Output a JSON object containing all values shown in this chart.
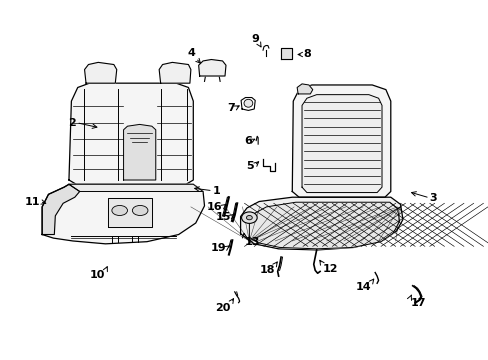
{
  "background_color": "#ffffff",
  "line_color": "#000000",
  "figure_width": 4.89,
  "figure_height": 3.6,
  "dpi": 100,
  "label_positions": {
    "1": [
      0.435,
      0.47,
      "left",
      "center",
      0.39,
      0.478
    ],
    "2": [
      0.155,
      0.66,
      "right",
      "center",
      0.205,
      0.645
    ],
    "3": [
      0.88,
      0.45,
      "left",
      "center",
      0.835,
      0.468
    ],
    "4": [
      0.4,
      0.84,
      "right",
      "bottom",
      0.415,
      0.818
    ],
    "5": [
      0.52,
      0.54,
      "right",
      "center",
      0.535,
      0.558
    ],
    "6": [
      0.515,
      0.61,
      "right",
      "center",
      0.528,
      0.618
    ],
    "7": [
      0.48,
      0.7,
      "right",
      "center",
      0.496,
      0.712
    ],
    "8": [
      0.62,
      0.85,
      "left",
      "center",
      0.602,
      0.85
    ],
    "9": [
      0.53,
      0.88,
      "right",
      "bottom",
      0.538,
      0.862
    ],
    "10": [
      0.215,
      0.248,
      "right",
      "top",
      0.222,
      0.268
    ],
    "11": [
      0.08,
      0.44,
      "right",
      "center",
      0.1,
      0.432
    ],
    "12": [
      0.66,
      0.265,
      "left",
      "top",
      0.65,
      0.285
    ],
    "13": [
      0.5,
      0.34,
      "left",
      "top",
      0.498,
      0.362
    ],
    "14": [
      0.76,
      0.215,
      "right",
      "top",
      0.77,
      0.232
    ],
    "15": [
      0.472,
      0.398,
      "right",
      "center",
      0.484,
      0.41
    ],
    "16": [
      0.455,
      0.425,
      "right",
      "center",
      0.468,
      0.438
    ],
    "17": [
      0.84,
      0.172,
      "left",
      "top",
      0.845,
      0.188
    ],
    "18": [
      0.562,
      0.262,
      "right",
      "top",
      0.572,
      0.28
    ],
    "19": [
      0.462,
      0.31,
      "right",
      "center",
      0.475,
      0.322
    ],
    "20": [
      0.472,
      0.158,
      "right",
      "top",
      0.482,
      0.178
    ]
  }
}
